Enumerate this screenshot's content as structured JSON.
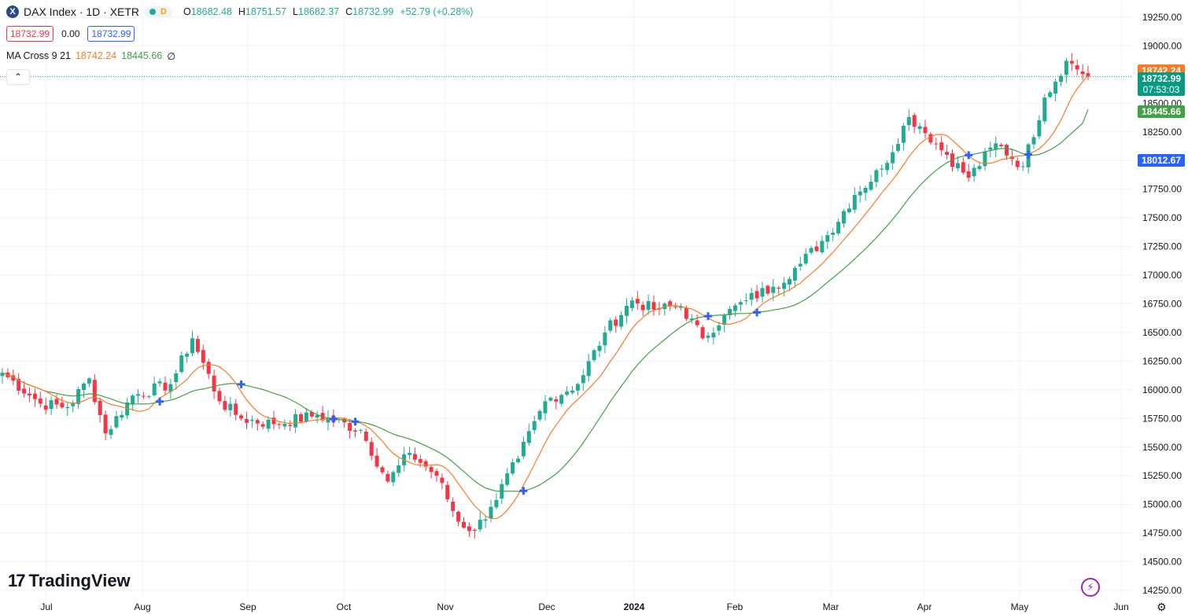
{
  "header": {
    "symbol_icon": "x-logo-icon",
    "title": "DAX Index · 1D · XETR",
    "status_badge": "D",
    "ohlc": [
      {
        "k": "O",
        "v": "18682.48"
      },
      {
        "k": "H",
        "v": "18751.57"
      },
      {
        "k": "L",
        "v": "18682.37"
      },
      {
        "k": "C",
        "v": "18732.99"
      },
      {
        "k": "",
        "v": "+52.79 (+0.28%)"
      }
    ],
    "sell_price": "18732.99",
    "spread": "0.00",
    "buy_price": "18732.99",
    "indicator_name": "MA Cross 9 21",
    "indicator_fast": "18742.24",
    "indicator_slow": "18445.66",
    "indicator_extra": "∅",
    "collapse_icon": "chevron-up-icon"
  },
  "brand": {
    "name": "TradingView",
    "logo": "tradingview-logo-icon"
  },
  "footer": {
    "flash_icon": "lightning-icon",
    "settings_icon": "gear-icon"
  },
  "colors": {
    "up": "#22ab94",
    "down": "#f23645",
    "fast_ma": "#f57c24",
    "slow_ma": "#43a047",
    "cross": "#2962ff",
    "grid": "#f0f3fa",
    "text": "#131722"
  },
  "price_labels": [
    {
      "value": 18742.24,
      "text": "18742.24",
      "color": "#f57c24"
    },
    {
      "value": 18732.99,
      "text": "18732.99",
      "sub": "07:53:03",
      "color": "#089981"
    },
    {
      "value": 18445.66,
      "text": "18445.66",
      "color": "#43a047"
    },
    {
      "value": 18012.67,
      "text": "18012.67",
      "color": "#2962ff"
    }
  ],
  "chart_data": {
    "type": "candlestick",
    "x_axis_labels": [
      "Jul",
      "Aug",
      "Sep",
      "Oct",
      "Nov",
      "Dec",
      "2024",
      "Feb",
      "Mar",
      "Apr",
      "May",
      "Jun"
    ],
    "y_axis_labels": [
      "19250.00",
      "19000.00",
      "18750.00",
      "18500.00",
      "18250.00",
      "18000.00",
      "17750.00",
      "17500.00",
      "17250.00",
      "17000.00",
      "16750.00",
      "16500.00",
      "16250.00",
      "16000.00",
      "15750.00",
      "15500.00",
      "15250.00",
      "15000.00",
      "14750.00",
      "14500.00",
      "14250.00"
    ],
    "ylim": [
      14250,
      19250
    ],
    "grid": true,
    "close_anchors": [
      [
        0,
        16150
      ],
      [
        7,
        15880
      ],
      [
        12,
        15850
      ],
      [
        16,
        16100
      ],
      [
        19,
        15620
      ],
      [
        24,
        15950
      ],
      [
        31,
        16050
      ],
      [
        35,
        16450
      ],
      [
        40,
        15900
      ],
      [
        44,
        15750
      ],
      [
        50,
        15700
      ],
      [
        58,
        15780
      ],
      [
        66,
        15650
      ],
      [
        71,
        15200
      ],
      [
        75,
        15450
      ],
      [
        80,
        15250
      ],
      [
        84,
        14850
      ],
      [
        87,
        14770
      ],
      [
        90,
        14980
      ],
      [
        95,
        15400
      ],
      [
        100,
        15900
      ],
      [
        106,
        16050
      ],
      [
        111,
        16500
      ],
      [
        116,
        16780
      ],
      [
        120,
        16700
      ],
      [
        125,
        16730
      ],
      [
        129,
        16450
      ],
      [
        133,
        16650
      ],
      [
        137,
        16780
      ],
      [
        142,
        16900
      ],
      [
        147,
        17100
      ],
      [
        152,
        17350
      ],
      [
        157,
        17700
      ],
      [
        162,
        17930
      ],
      [
        167,
        18380
      ],
      [
        169,
        18300
      ],
      [
        174,
        18050
      ],
      [
        178,
        17850
      ],
      [
        183,
        18150
      ],
      [
        188,
        17950
      ],
      [
        192,
        18550
      ],
      [
        196,
        18870
      ],
      [
        200,
        18732.99
      ]
    ],
    "sma_fast_period": 9,
    "sma_slow_period": 21,
    "last_close": 18732.99,
    "last_fast_ma": 18742.24,
    "last_slow_ma": 18445.66
  }
}
